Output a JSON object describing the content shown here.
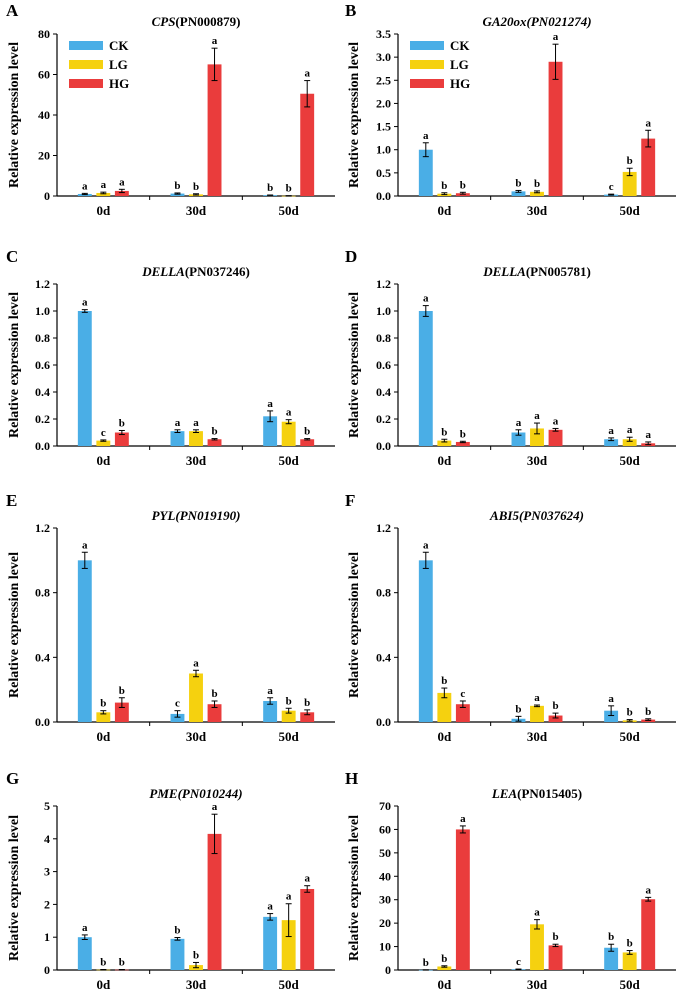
{
  "colors": {
    "CK": "#4aaee6",
    "LG": "#f5d10f",
    "HG": "#ea3c3c"
  },
  "chart_data": [
    {
      "panel": "A",
      "type": "bar",
      "gene": "CPS",
      "id": "(PN000879)",
      "gene_italic": true,
      "id_italic": false,
      "ylabel": "Relative expression level",
      "ylim": [
        0,
        80
      ],
      "yticks": [
        "0",
        "20",
        "40",
        "60",
        "80"
      ],
      "categories": [
        "0d",
        "30d",
        "50d"
      ],
      "legend": [
        "CK",
        "LG",
        "HG"
      ],
      "series": [
        {
          "name": "CK",
          "values": [
            1.0,
            1.2,
            0.4
          ],
          "errors": [
            0.3,
            0.3,
            0.1
          ],
          "letters": [
            "a",
            "b",
            "b"
          ]
        },
        {
          "name": "LG",
          "values": [
            1.5,
            0.8,
            0.1
          ],
          "errors": [
            0.4,
            0.3,
            0.05
          ],
          "letters": [
            "a",
            "b",
            "b"
          ]
        },
        {
          "name": "HG",
          "values": [
            2.5,
            65,
            50.5
          ],
          "errors": [
            0.8,
            8,
            6.5
          ],
          "letters": [
            "a",
            "a",
            "a"
          ]
        }
      ]
    },
    {
      "panel": "B",
      "type": "bar",
      "gene": "GA20ox",
      "id": "(PN021274)",
      "gene_italic": true,
      "id_italic": true,
      "ylabel": "Relative expression level",
      "ylim": [
        0,
        3.5
      ],
      "yticks": [
        "0.0",
        "0.5",
        "1.0",
        "1.5",
        "2.0",
        "2.5",
        "3.0",
        "3.5"
      ],
      "categories": [
        "0d",
        "30d",
        "50d"
      ],
      "legend": [
        "CK",
        "LG",
        "HG"
      ],
      "series": [
        {
          "name": "CK",
          "values": [
            1.0,
            0.1,
            0.03
          ],
          "errors": [
            0.15,
            0.02,
            0.01
          ],
          "letters": [
            "a",
            "b",
            "c"
          ]
        },
        {
          "name": "LG",
          "values": [
            0.05,
            0.09,
            0.52
          ],
          "errors": [
            0.02,
            0.02,
            0.08
          ],
          "letters": [
            "b",
            "b",
            "b"
          ]
        },
        {
          "name": "HG",
          "values": [
            0.06,
            2.9,
            1.24
          ],
          "errors": [
            0.02,
            0.38,
            0.18
          ],
          "letters": [
            "b",
            "a",
            "a"
          ]
        }
      ]
    },
    {
      "panel": "C",
      "type": "bar",
      "gene": "DELLA",
      "id": "(PN037246)",
      "gene_italic": true,
      "id_italic": false,
      "ylabel": "Relative expression level",
      "ylim": [
        0,
        1.2
      ],
      "yticks": [
        "0.0",
        "0.2",
        "0.4",
        "0.6",
        "0.8",
        "1.0",
        "1.2"
      ],
      "categories": [
        "0d",
        "30d",
        "50d"
      ],
      "legend": [],
      "series": [
        {
          "name": "CK",
          "values": [
            1.0,
            0.11,
            0.22
          ],
          "errors": [
            0.01,
            0.01,
            0.04
          ],
          "letters": [
            "a",
            "a",
            "a"
          ]
        },
        {
          "name": "LG",
          "values": [
            0.04,
            0.11,
            0.18
          ],
          "errors": [
            0.005,
            0.01,
            0.015
          ],
          "letters": [
            "c",
            "a",
            "a"
          ]
        },
        {
          "name": "HG",
          "values": [
            0.1,
            0.05,
            0.05
          ],
          "errors": [
            0.015,
            0.005,
            0.005
          ],
          "letters": [
            "b",
            "b",
            "b"
          ]
        }
      ]
    },
    {
      "panel": "D",
      "type": "bar",
      "gene": "DELLA",
      "id": "(PN005781)",
      "gene_italic": true,
      "id_italic": false,
      "ylabel": "Relative expression level",
      "ylim": [
        0,
        1.2
      ],
      "yticks": [
        "0.0",
        "0.2",
        "0.4",
        "0.6",
        "0.8",
        "1.0",
        "1.2"
      ],
      "categories": [
        "0d",
        "30d",
        "50d"
      ],
      "legend": [],
      "series": [
        {
          "name": "CK",
          "values": [
            1.0,
            0.1,
            0.05
          ],
          "errors": [
            0.04,
            0.02,
            0.01
          ],
          "letters": [
            "a",
            "a",
            "a"
          ]
        },
        {
          "name": "LG",
          "values": [
            0.04,
            0.13,
            0.05
          ],
          "errors": [
            0.01,
            0.04,
            0.015
          ],
          "letters": [
            "b",
            "a",
            "a"
          ]
        },
        {
          "name": "HG",
          "values": [
            0.03,
            0.12,
            0.02
          ],
          "errors": [
            0.005,
            0.01,
            0.01
          ],
          "letters": [
            "b",
            "a",
            "a"
          ]
        }
      ]
    },
    {
      "panel": "E",
      "type": "bar",
      "gene": "PYL",
      "id": "(PN019190)",
      "gene_italic": true,
      "id_italic": true,
      "ylabel": "Relative expression level",
      "ylim": [
        0,
        1.2
      ],
      "yticks": [
        "0.0",
        "0.4",
        "0.8",
        "1.2"
      ],
      "categories": [
        "0d",
        "30d",
        "50d"
      ],
      "legend": [],
      "series": [
        {
          "name": "CK",
          "values": [
            1.0,
            0.05,
            0.13
          ],
          "errors": [
            0.05,
            0.02,
            0.02
          ],
          "letters": [
            "a",
            "c",
            "a"
          ]
        },
        {
          "name": "LG",
          "values": [
            0.06,
            0.3,
            0.07
          ],
          "errors": [
            0.01,
            0.02,
            0.015
          ],
          "letters": [
            "b",
            "a",
            "b"
          ]
        },
        {
          "name": "HG",
          "values": [
            0.12,
            0.11,
            0.06
          ],
          "errors": [
            0.03,
            0.02,
            0.015
          ],
          "letters": [
            "b",
            "b",
            "b"
          ]
        }
      ]
    },
    {
      "panel": "F",
      "type": "bar",
      "gene": "ABI5",
      "id": "(PN037624)",
      "gene_italic": true,
      "id_italic": true,
      "ylabel": "Relative expression level",
      "ylim": [
        0,
        1.2
      ],
      "yticks": [
        "0.0",
        "0.4",
        "0.8",
        "1.2"
      ],
      "categories": [
        "0d",
        "30d",
        "50d"
      ],
      "legend": [],
      "series": [
        {
          "name": "CK",
          "values": [
            1.0,
            0.02,
            0.07
          ],
          "errors": [
            0.05,
            0.015,
            0.03
          ],
          "letters": [
            "a",
            "b",
            "a"
          ]
        },
        {
          "name": "LG",
          "values": [
            0.18,
            0.1,
            0.01
          ],
          "errors": [
            0.03,
            0.005,
            0.005
          ],
          "letters": [
            "b",
            "a",
            "b"
          ]
        },
        {
          "name": "HG",
          "values": [
            0.11,
            0.04,
            0.015
          ],
          "errors": [
            0.02,
            0.015,
            0.005
          ],
          "letters": [
            "c",
            "b",
            "b"
          ]
        }
      ]
    },
    {
      "panel": "G",
      "type": "bar",
      "gene": "PME",
      "id": "(PN010244)",
      "gene_italic": true,
      "id_italic": true,
      "ylabel": "Relative expression level",
      "ylim": [
        0,
        5
      ],
      "yticks": [
        "0",
        "1",
        "2",
        "3",
        "4",
        "5"
      ],
      "categories": [
        "0d",
        "30d",
        "50d"
      ],
      "legend": [],
      "series": [
        {
          "name": "CK",
          "values": [
            1.0,
            0.95,
            1.62
          ],
          "errors": [
            0.07,
            0.04,
            0.1
          ],
          "letters": [
            "a",
            "b",
            "a"
          ]
        },
        {
          "name": "LG",
          "values": [
            0.01,
            0.15,
            1.52
          ],
          "errors": [
            0.005,
            0.08,
            0.5
          ],
          "letters": [
            "b",
            "b",
            "a"
          ]
        },
        {
          "name": "HG",
          "values": [
            0.01,
            4.15,
            2.47
          ],
          "errors": [
            0.005,
            0.6,
            0.1
          ],
          "letters": [
            "b",
            "a",
            "a"
          ]
        }
      ]
    },
    {
      "panel": "H",
      "type": "bar",
      "gene": "LEA",
      "id": "(PN015405)",
      "gene_italic": true,
      "id_italic": false,
      "ylabel": "Relative expression level",
      "ylim": [
        0,
        70
      ],
      "yticks": [
        "0",
        "10",
        "20",
        "30",
        "40",
        "50",
        "60",
        "70"
      ],
      "categories": [
        "0d",
        "30d",
        "50d"
      ],
      "legend": [],
      "series": [
        {
          "name": "CK",
          "values": [
            0.05,
            0.3,
            9.5
          ],
          "errors": [
            0.02,
            0.1,
            1.5
          ],
          "letters": [
            "b",
            "c",
            "b"
          ]
        },
        {
          "name": "LG",
          "values": [
            1.5,
            19.5,
            7.5
          ],
          "errors": [
            0.3,
            2,
            0.8
          ],
          "letters": [
            "b",
            "a",
            "b"
          ]
        },
        {
          "name": "HG",
          "values": [
            60,
            10.5,
            30.2
          ],
          "errors": [
            1.5,
            0.5,
            0.8
          ],
          "letters": [
            "a",
            "b",
            "a"
          ]
        }
      ]
    }
  ]
}
